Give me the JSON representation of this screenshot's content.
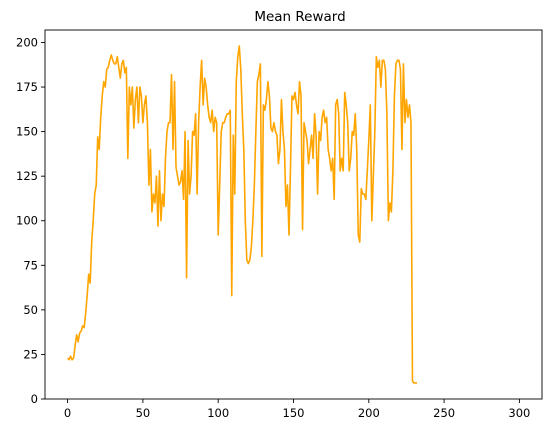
{
  "chart_data": {
    "type": "line",
    "title": "Mean Reward",
    "xlabel": "",
    "ylabel": "",
    "xlim": [
      -15,
      315
    ],
    "ylim": [
      0,
      207
    ],
    "xticks": [
      0,
      50,
      100,
      150,
      200,
      250,
      300
    ],
    "yticks": [
      0,
      25,
      50,
      75,
      100,
      125,
      150,
      175,
      200
    ],
    "grid": false,
    "line_color": "#FFA500",
    "series": [
      {
        "values": [
          [
            0,
            23
          ],
          [
            1,
            22
          ],
          [
            2,
            24
          ],
          [
            3,
            22
          ],
          [
            4,
            23
          ],
          [
            5,
            30
          ],
          [
            6,
            36
          ],
          [
            7,
            32
          ],
          [
            8,
            37
          ],
          [
            9,
            38
          ],
          [
            10,
            41
          ],
          [
            11,
            40
          ],
          [
            12,
            48
          ],
          [
            13,
            58
          ],
          [
            14,
            70
          ],
          [
            15,
            65
          ],
          [
            16,
            88
          ],
          [
            17,
            100
          ],
          [
            18,
            115
          ],
          [
            19,
            120
          ],
          [
            20,
            147
          ],
          [
            21,
            140
          ],
          [
            22,
            158
          ],
          [
            23,
            170
          ],
          [
            24,
            178
          ],
          [
            25,
            175
          ],
          [
            26,
            185
          ],
          [
            27,
            186
          ],
          [
            28,
            190
          ],
          [
            29,
            193
          ],
          [
            30,
            190
          ],
          [
            31,
            188
          ],
          [
            32,
            188
          ],
          [
            33,
            192
          ],
          [
            34,
            186
          ],
          [
            35,
            180
          ],
          [
            36,
            188
          ],
          [
            37,
            190
          ],
          [
            38,
            183
          ],
          [
            39,
            186
          ],
          [
            40,
            135
          ],
          [
            41,
            175
          ],
          [
            42,
            165
          ],
          [
            43,
            175
          ],
          [
            44,
            152
          ],
          [
            45,
            168
          ],
          [
            46,
            175
          ],
          [
            47,
            155
          ],
          [
            48,
            175
          ],
          [
            49,
            170
          ],
          [
            50,
            155
          ],
          [
            51,
            165
          ],
          [
            52,
            170
          ],
          [
            53,
            155
          ],
          [
            54,
            120
          ],
          [
            55,
            140
          ],
          [
            56,
            105
          ],
          [
            57,
            115
          ],
          [
            58,
            110
          ],
          [
            59,
            125
          ],
          [
            60,
            97
          ],
          [
            61,
            128
          ],
          [
            62,
            100
          ],
          [
            63,
            115
          ],
          [
            64,
            108
          ],
          [
            65,
            135
          ],
          [
            66,
            150
          ],
          [
            67,
            155
          ],
          [
            68,
            155
          ],
          [
            69,
            182
          ],
          [
            70,
            140
          ],
          [
            71,
            178
          ],
          [
            72,
            130
          ],
          [
            73,
            125
          ],
          [
            74,
            120
          ],
          [
            75,
            122
          ],
          [
            76,
            128
          ],
          [
            77,
            112
          ],
          [
            78,
            150
          ],
          [
            79,
            68
          ],
          [
            80,
            145
          ],
          [
            81,
            115
          ],
          [
            82,
            125
          ],
          [
            83,
            150
          ],
          [
            84,
            148
          ],
          [
            85,
            160
          ],
          [
            86,
            115
          ],
          [
            87,
            155
          ],
          [
            88,
            175
          ],
          [
            89,
            190
          ],
          [
            90,
            165
          ],
          [
            91,
            180
          ],
          [
            92,
            175
          ],
          [
            93,
            165
          ],
          [
            94,
            158
          ],
          [
            95,
            155
          ],
          [
            96,
            162
          ],
          [
            97,
            150
          ],
          [
            98,
            158
          ],
          [
            99,
            155
          ],
          [
            100,
            92
          ],
          [
            101,
            120
          ],
          [
            102,
            150
          ],
          [
            103,
            155
          ],
          [
            104,
            155
          ],
          [
            105,
            158
          ],
          [
            106,
            160
          ],
          [
            107,
            160
          ],
          [
            108,
            162
          ],
          [
            109,
            58
          ],
          [
            110,
            148
          ],
          [
            111,
            115
          ],
          [
            112,
            178
          ],
          [
            113,
            192
          ],
          [
            114,
            198
          ],
          [
            115,
            185
          ],
          [
            116,
            160
          ],
          [
            117,
            140
          ],
          [
            118,
            100
          ],
          [
            119,
            78
          ],
          [
            120,
            76
          ],
          [
            121,
            78
          ],
          [
            122,
            85
          ],
          [
            123,
            100
          ],
          [
            124,
            120
          ],
          [
            125,
            150
          ],
          [
            126,
            178
          ],
          [
            127,
            182
          ],
          [
            128,
            188
          ],
          [
            129,
            80
          ],
          [
            130,
            165
          ],
          [
            131,
            162
          ],
          [
            132,
            168
          ],
          [
            133,
            178
          ],
          [
            134,
            170
          ],
          [
            135,
            152
          ],
          [
            136,
            150
          ],
          [
            137,
            155
          ],
          [
            138,
            150
          ],
          [
            139,
            148
          ],
          [
            140,
            132
          ],
          [
            141,
            140
          ],
          [
            142,
            168
          ],
          [
            143,
            150
          ],
          [
            144,
            140
          ],
          [
            145,
            108
          ],
          [
            146,
            120
          ],
          [
            147,
            92
          ],
          [
            148,
            130
          ],
          [
            149,
            170
          ],
          [
            150,
            168
          ],
          [
            151,
            172
          ],
          [
            152,
            165
          ],
          [
            153,
            160
          ],
          [
            154,
            178
          ],
          [
            155,
            170
          ],
          [
            156,
            95
          ],
          [
            157,
            155
          ],
          [
            158,
            150
          ],
          [
            159,
            145
          ],
          [
            160,
            132
          ],
          [
            161,
            140
          ],
          [
            162,
            148
          ],
          [
            163,
            135
          ],
          [
            164,
            160
          ],
          [
            165,
            148
          ],
          [
            166,
            115
          ],
          [
            167,
            150
          ],
          [
            168,
            145
          ],
          [
            169,
            158
          ],
          [
            170,
            162
          ],
          [
            171,
            155
          ],
          [
            172,
            158
          ],
          [
            173,
            140
          ],
          [
            174,
            135
          ],
          [
            175,
            128
          ],
          [
            176,
            135
          ],
          [
            177,
            112
          ],
          [
            178,
            165
          ],
          [
            179,
            168
          ],
          [
            180,
            160
          ],
          [
            181,
            128
          ],
          [
            182,
            135
          ],
          [
            183,
            128
          ],
          [
            184,
            172
          ],
          [
            185,
            165
          ],
          [
            186,
            155
          ],
          [
            187,
            128
          ],
          [
            188,
            135
          ],
          [
            189,
            150
          ],
          [
            190,
            148
          ],
          [
            191,
            160
          ],
          [
            192,
            140
          ],
          [
            193,
            92
          ],
          [
            194,
            88
          ],
          [
            195,
            118
          ],
          [
            196,
            115
          ],
          [
            197,
            115
          ],
          [
            198,
            112
          ],
          [
            199,
            128
          ],
          [
            200,
            145
          ],
          [
            201,
            165
          ],
          [
            202,
            100
          ],
          [
            203,
            125
          ],
          [
            204,
            150
          ],
          [
            205,
            192
          ],
          [
            206,
            186
          ],
          [
            207,
            190
          ],
          [
            208,
            175
          ],
          [
            209,
            190
          ],
          [
            210,
            190
          ],
          [
            211,
            185
          ],
          [
            212,
            160
          ],
          [
            213,
            100
          ],
          [
            214,
            110
          ],
          [
            215,
            105
          ],
          [
            216,
            128
          ],
          [
            217,
            170
          ],
          [
            218,
            188
          ],
          [
            219,
            190
          ],
          [
            220,
            190
          ],
          [
            221,
            185
          ],
          [
            222,
            140
          ],
          [
            223,
            188
          ],
          [
            224,
            155
          ],
          [
            225,
            168
          ],
          [
            226,
            158
          ],
          [
            227,
            165
          ],
          [
            228,
            155
          ],
          [
            229,
            10
          ],
          [
            230,
            9
          ],
          [
            231,
            9
          ],
          [
            232,
            9
          ]
        ]
      }
    ]
  }
}
